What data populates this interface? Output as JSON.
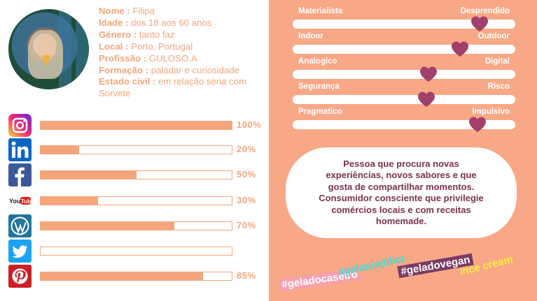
{
  "profile": {
    "nome_label": "Nome :",
    "nome_value": " Filipa",
    "idade_label": "Idade :",
    "idade_value": " dos 18 aos 60 anos",
    "genero_label": "Género :",
    "genero_value": " tanto faz",
    "local_label": "Local :",
    "local_value": " Porto, Portugal",
    "profissao_label": "Profissão :",
    "profissao_value": " GULOSO.A",
    "formacao_label": "Formação :",
    "formacao_value": " paladar e curiosidade",
    "estado_label": "Estado civil :",
    "estado_value": " em relação seria com Sorvete"
  },
  "social": [
    {
      "icon": "instagram-icon",
      "value": 1.0,
      "label": "100%",
      "color": "#c13584"
    },
    {
      "icon": "linkedin-icon",
      "value": 0.2,
      "label": "20%",
      "color": "#0a66c2"
    },
    {
      "icon": "facebook-icon",
      "value": 0.5,
      "label": "50%",
      "color": "#3b5998"
    },
    {
      "icon": "youtube-icon",
      "value": 0.3,
      "label": "30%",
      "color": "#e62117"
    },
    {
      "icon": "wordpress-icon",
      "value": 0.7,
      "label": "70%",
      "color": "#21759b"
    },
    {
      "icon": "twitter-icon",
      "value": 0.0,
      "label": "",
      "color": "#1da1f2"
    },
    {
      "icon": "pinterest-icon",
      "value": 0.85,
      "label": "85%",
      "color": "#cb2027"
    }
  ],
  "traits": [
    {
      "left": "Materialista",
      "right": "Desprendido",
      "value": 0.84
    },
    {
      "left": "Indoor",
      "right": "Outdoor",
      "value": 0.75
    },
    {
      "left": "Analogico",
      "right": "Digital",
      "value": 0.61
    },
    {
      "left": "Segurança",
      "right": "Risco",
      "value": 0.6
    },
    {
      "left": "Pragmatico",
      "right": "Impulsivo",
      "value": 0.83
    }
  ],
  "persona_text": "Pessoa que procura novas experiências, novos sabores e que gosta de compartilhar momentos. Consumidor consciente que privilegie comércios locais e com receitas homemade.",
  "hashtags": [
    "#geladocaseiro",
    "#gelatoaddict",
    "#geladovegan",
    "#ice cream"
  ],
  "colors": {
    "accent": "#f4a57c",
    "panel": "#f8a887",
    "heart": "#a23f6b"
  }
}
